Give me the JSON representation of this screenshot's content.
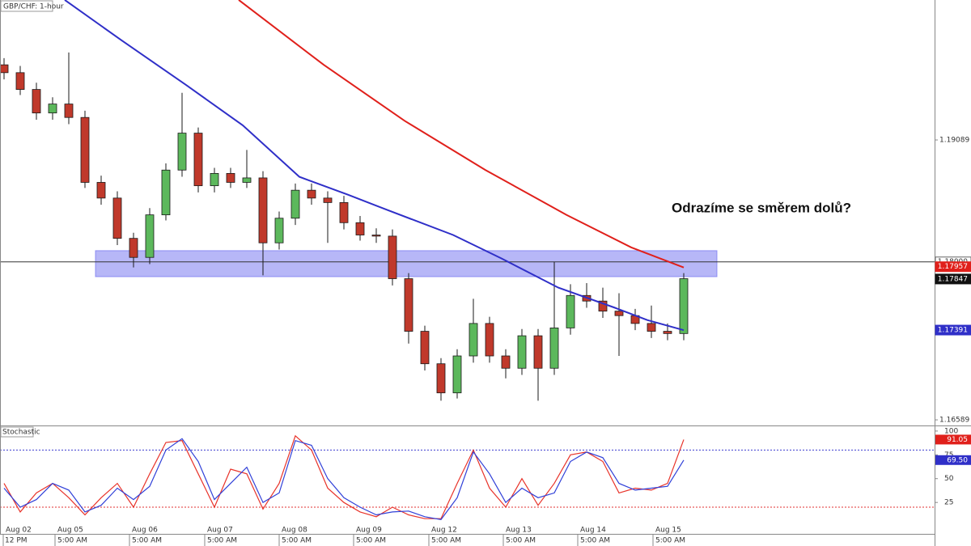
{
  "chart_data": {
    "type": "candlestick",
    "title": "GBP/CHF: 1-hour",
    "annotation": "Odrazíme se směrem dolů?",
    "xlim": [
      -0.25,
      57.5
    ],
    "xticks": [
      {
        "value": -0.05,
        "label": "Aug 02"
      },
      {
        "value": 3.15,
        "label": "Aug 05"
      },
      {
        "value": 7.75,
        "label": "Aug 06"
      },
      {
        "value": 12.4,
        "label": "Aug 07"
      },
      {
        "value": 17,
        "label": "Aug 08"
      },
      {
        "value": 21.6,
        "label": "Aug 09"
      },
      {
        "value": 26.25,
        "label": "Aug 12"
      },
      {
        "value": 30.85,
        "label": "Aug 13"
      },
      {
        "value": 35.45,
        "label": "Aug 14"
      },
      {
        "value": 40.1,
        "label": "Aug 15"
      }
    ],
    "xticks_time": [
      {
        "value": -0.1,
        "label": "12 PM"
      },
      {
        "value": 3.15,
        "label": "5:00 AM"
      },
      {
        "value": 7.75,
        "label": "5:00 AM"
      },
      {
        "value": 12.4,
        "label": "5:00 AM"
      },
      {
        "value": 17,
        "label": "5:00 AM"
      },
      {
        "value": 21.6,
        "label": "5:00 AM"
      },
      {
        "value": 26.25,
        "label": "5:00 AM"
      },
      {
        "value": 30.85,
        "label": "5:00 AM"
      },
      {
        "value": 35.45,
        "label": "5:00 AM"
      },
      {
        "value": 40.1,
        "label": "5:00 AM"
      }
    ],
    "ylim": [
      1.16546,
      1.20339
    ],
    "yticks": [
      1.19089,
      1.16589
    ],
    "up_color": "#5cb85c",
    "down_color": "#c0392b",
    "candles": {
      "open": [
        1.1976,
        1.1969,
        1.1954,
        1.1933,
        1.1941,
        1.1929,
        1.1871,
        1.1857,
        1.1821,
        1.1804,
        1.1842,
        1.1882,
        1.1915,
        1.1868,
        1.1879,
        1.1871,
        1.1875,
        1.1817,
        1.1839,
        1.1864,
        1.1857,
        1.1853,
        1.1835,
        1.1824,
        1.1823,
        1.1785,
        1.1738,
        1.1709,
        1.1683,
        1.1716,
        1.1745,
        1.1716,
        1.1705,
        1.1734,
        1.1705,
        1.1741,
        1.177,
        1.1765,
        1.1756,
        1.1752,
        1.1745,
        1.1738,
        1.1736
      ],
      "high": [
        1.1982,
        1.1975,
        1.196,
        1.1947,
        1.1987,
        1.1935,
        1.1877,
        1.1863,
        1.1826,
        1.1848,
        1.1888,
        1.1951,
        1.192,
        1.1884,
        1.1884,
        1.19,
        1.1881,
        1.1845,
        1.187,
        1.187,
        1.1863,
        1.1859,
        1.1841,
        1.183,
        1.1829,
        1.179,
        1.1743,
        1.1714,
        1.1722,
        1.1767,
        1.1751,
        1.1722,
        1.174,
        1.174,
        1.18,
        1.178,
        1.1781,
        1.1777,
        1.1772,
        1.1758,
        1.1761,
        1.1745,
        1.179
      ],
      "low": [
        1.1963,
        1.1949,
        1.1927,
        1.1927,
        1.1923,
        1.1866,
        1.1851,
        1.1815,
        1.1795,
        1.1798,
        1.1837,
        1.1876,
        1.1862,
        1.1862,
        1.1866,
        1.1866,
        1.1788,
        1.1811,
        1.1833,
        1.1851,
        1.1817,
        1.1829,
        1.1819,
        1.1817,
        1.1779,
        1.1727,
        1.1703,
        1.1676,
        1.1678,
        1.171,
        1.171,
        1.1696,
        1.1699,
        1.1676,
        1.1699,
        1.1735,
        1.1759,
        1.175,
        1.1716,
        1.1739,
        1.1732,
        1.173,
        1.173
      ],
      "close": [
        1.1969,
        1.1954,
        1.1933,
        1.1941,
        1.1929,
        1.1871,
        1.1857,
        1.1821,
        1.1804,
        1.1842,
        1.1882,
        1.1915,
        1.1868,
        1.1879,
        1.1871,
        1.1875,
        1.1817,
        1.1839,
        1.1864,
        1.1857,
        1.1853,
        1.1835,
        1.1824,
        1.1823,
        1.1785,
        1.1738,
        1.1709,
        1.1683,
        1.1716,
        1.1745,
        1.1716,
        1.1705,
        1.1734,
        1.1705,
        1.1741,
        1.177,
        1.1765,
        1.1756,
        1.1752,
        1.1745,
        1.1738,
        1.1736,
        1.1785
      ]
    },
    "moving_averages": [
      {
        "color": "#2f2fc8",
        "x": [
          3.75,
          7.25,
          11.25,
          14.75,
          18.25,
          21.25,
          23.75,
          27.75,
          30.75,
          34.25,
          37.75,
          39.75,
          42
        ],
        "values": [
          1.2034,
          1.1998,
          1.1958,
          1.1922,
          1.1876,
          1.186,
          1.1846,
          1.1824,
          1.1803,
          1.1777,
          1.1759,
          1.1748,
          1.1739
        ]
      },
      {
        "color": "#e0201b",
        "x": [
          14.5,
          19.75,
          24.75,
          29.75,
          34.75,
          38.75,
          42
        ],
        "values": [
          1.2034,
          1.1976,
          1.1926,
          1.1882,
          1.1842,
          1.1813,
          1.1795
        ]
      }
    ],
    "level": {
      "value": 1.18,
      "color": "#333333"
    },
    "zone": {
      "x": [
        5.65,
        44.05
      ],
      "y": [
        1.17868,
        1.181
      ],
      "color": "#6f6ff0"
    },
    "price_labels": [
      {
        "value": 1.18,
        "label": "1.18000",
        "color": "#ffffff",
        "text_color": "#333333"
      },
      {
        "value": 1.17957,
        "color": "#e0201b",
        "text_color": "#ffffff"
      },
      {
        "value": 1.17847,
        "color": "#111111",
        "text_color": "#ffffff"
      },
      {
        "value": 1.17391,
        "color": "#2f2fc8",
        "text_color": "#ffffff"
      }
    ],
    "stochastic": {
      "title": "Stochastic",
      "ylim": [
        -8,
        105
      ],
      "yticks": [
        100,
        75,
        50,
        25
      ],
      "levels": [
        {
          "value": 80,
          "color": "#3b3bd0"
        },
        {
          "value": 20,
          "color": "#e03030"
        }
      ],
      "series": [
        {
          "color": "#e8332a",
          "values": [
            45,
            15,
            35,
            45,
            30,
            12,
            30,
            45,
            20,
            55,
            88,
            90,
            55,
            20,
            60,
            55,
            18,
            45,
            95,
            80,
            40,
            25,
            15,
            10,
            20,
            12,
            8,
            8,
            45,
            80,
            40,
            20,
            50,
            22,
            45,
            75,
            78,
            68,
            35,
            40,
            38,
            45,
            91.05
          ]
        },
        {
          "color": "#3040d8",
          "values": [
            40,
            20,
            28,
            45,
            38,
            15,
            22,
            40,
            28,
            42,
            80,
            92,
            68,
            28,
            45,
            62,
            25,
            35,
            90,
            85,
            50,
            30,
            20,
            12,
            15,
            16,
            10,
            7,
            30,
            78,
            55,
            25,
            40,
            30,
            35,
            68,
            78,
            72,
            45,
            38,
            40,
            42,
            69.5
          ]
        }
      ],
      "labels": [
        {
          "value": 91.05,
          "color": "#e0201b"
        },
        {
          "value": 69.5,
          "label": "69.50",
          "color": "#2f2fc8"
        }
      ]
    }
  }
}
